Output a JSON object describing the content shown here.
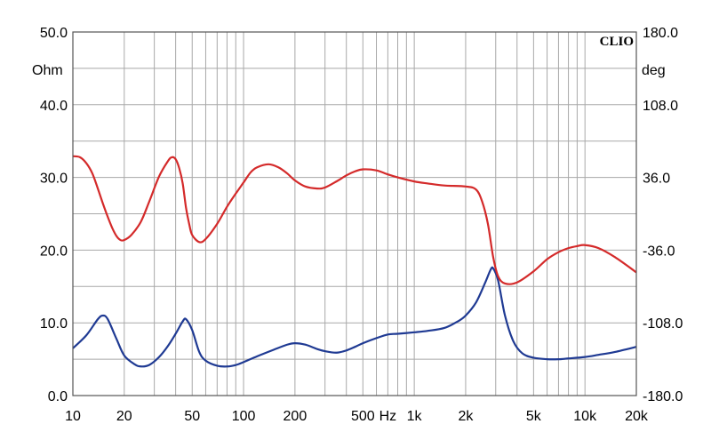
{
  "chart_data": {
    "type": "line",
    "brand": "CLIO",
    "x_scale": "log",
    "xlim": [
      10,
      20000
    ],
    "x_ticks": [
      {
        "value": 10,
        "label": "10"
      },
      {
        "value": 20,
        "label": "20"
      },
      {
        "value": 50,
        "label": "50"
      },
      {
        "value": 100,
        "label": "100"
      },
      {
        "value": 200,
        "label": "200"
      },
      {
        "value": 500,
        "label": "500"
      },
      {
        "value": 700,
        "label": "Hz"
      },
      {
        "value": 1000,
        "label": "1k"
      },
      {
        "value": 2000,
        "label": "2k"
      },
      {
        "value": 5000,
        "label": "5k"
      },
      {
        "value": 10000,
        "label": "10k"
      },
      {
        "value": 20000,
        "label": "20k"
      }
    ],
    "y_left": {
      "unit": "Ohm",
      "lim": [
        0,
        50
      ],
      "ticks": [
        {
          "value": 0,
          "label": "0.0"
        },
        {
          "value": 10,
          "label": "10.0"
        },
        {
          "value": 20,
          "label": "20.0"
        },
        {
          "value": 30,
          "label": "30.0"
        },
        {
          "value": 40,
          "label": "40.0"
        },
        {
          "value": 50,
          "label": "50.0"
        }
      ]
    },
    "y_right": {
      "unit": "deg",
      "lim": [
        -180,
        180
      ],
      "ticks": [
        {
          "value": -180,
          "label": "-180.0"
        },
        {
          "value": -108,
          "label": "-108.0"
        },
        {
          "value": -36,
          "label": "-36.0"
        },
        {
          "value": 36,
          "label": "36.0"
        },
        {
          "value": 108,
          "label": "108.0"
        },
        {
          "value": 180,
          "label": "180.0"
        }
      ]
    },
    "grid": true,
    "series": [
      {
        "axis": "left",
        "color": "#1f3a93",
        "points": [
          [
            10,
            6.5
          ],
          [
            12,
            8.3
          ],
          [
            14,
            10.5
          ],
          [
            15,
            11.0
          ],
          [
            16,
            10.5
          ],
          [
            18,
            7.8
          ],
          [
            20,
            5.5
          ],
          [
            23,
            4.3
          ],
          [
            25,
            4.0
          ],
          [
            28,
            4.2
          ],
          [
            32,
            5.3
          ],
          [
            36,
            6.8
          ],
          [
            40,
            8.5
          ],
          [
            44,
            10.2
          ],
          [
            46,
            10.5
          ],
          [
            50,
            9.0
          ],
          [
            55,
            6.0
          ],
          [
            60,
            4.8
          ],
          [
            70,
            4.1
          ],
          [
            80,
            4.0
          ],
          [
            90,
            4.2
          ],
          [
            100,
            4.6
          ],
          [
            120,
            5.4
          ],
          [
            150,
            6.3
          ],
          [
            180,
            7.0
          ],
          [
            200,
            7.2
          ],
          [
            230,
            7.0
          ],
          [
            270,
            6.4
          ],
          [
            300,
            6.1
          ],
          [
            350,
            5.9
          ],
          [
            400,
            6.2
          ],
          [
            450,
            6.7
          ],
          [
            500,
            7.2
          ],
          [
            600,
            7.9
          ],
          [
            700,
            8.4
          ],
          [
            800,
            8.5
          ],
          [
            1000,
            8.7
          ],
          [
            1200,
            8.9
          ],
          [
            1500,
            9.3
          ],
          [
            1800,
            10.2
          ],
          [
            2000,
            11.0
          ],
          [
            2300,
            12.8
          ],
          [
            2600,
            15.5
          ],
          [
            2800,
            17.3
          ],
          [
            2900,
            17.5
          ],
          [
            3100,
            15.8
          ],
          [
            3400,
            11.0
          ],
          [
            3800,
            7.5
          ],
          [
            4300,
            5.8
          ],
          [
            5000,
            5.2
          ],
          [
            6000,
            5.0
          ],
          [
            7000,
            5.0
          ],
          [
            8000,
            5.1
          ],
          [
            10000,
            5.3
          ],
          [
            12000,
            5.6
          ],
          [
            15000,
            6.0
          ],
          [
            20000,
            6.7
          ]
        ]
      },
      {
        "axis": "right",
        "color": "#d42a2a",
        "points": [
          [
            10,
            57
          ],
          [
            11,
            56
          ],
          [
            12,
            50
          ],
          [
            13,
            40
          ],
          [
            14,
            25
          ],
          [
            15,
            10
          ],
          [
            16,
            -3
          ],
          [
            17,
            -14
          ],
          [
            18,
            -22
          ],
          [
            19,
            -26
          ],
          [
            20,
            -26
          ],
          [
            22,
            -21
          ],
          [
            25,
            -8
          ],
          [
            28,
            12
          ],
          [
            32,
            37
          ],
          [
            36,
            52
          ],
          [
            38,
            56
          ],
          [
            40,
            54
          ],
          [
            42,
            45
          ],
          [
            44,
            30
          ],
          [
            46,
            6
          ],
          [
            48,
            -10
          ],
          [
            50,
            -21
          ],
          [
            55,
            -28
          ],
          [
            60,
            -25
          ],
          [
            70,
            -10
          ],
          [
            80,
            7
          ],
          [
            90,
            20
          ],
          [
            100,
            31
          ],
          [
            110,
            41
          ],
          [
            120,
            46
          ],
          [
            140,
            49
          ],
          [
            160,
            46
          ],
          [
            180,
            40
          ],
          [
            200,
            33
          ],
          [
            230,
            27
          ],
          [
            270,
            25
          ],
          [
            300,
            26
          ],
          [
            350,
            32
          ],
          [
            400,
            38
          ],
          [
            450,
            42
          ],
          [
            500,
            44
          ],
          [
            600,
            43
          ],
          [
            700,
            39
          ],
          [
            800,
            36
          ],
          [
            1000,
            32
          ],
          [
            1200,
            30
          ],
          [
            1500,
            28
          ],
          [
            2000,
            27
          ],
          [
            2300,
            24
          ],
          [
            2500,
            12
          ],
          [
            2700,
            -10
          ],
          [
            2900,
            -43
          ],
          [
            3100,
            -62
          ],
          [
            3400,
            -69
          ],
          [
            4000,
            -68
          ],
          [
            5000,
            -57
          ],
          [
            6000,
            -45
          ],
          [
            7000,
            -38
          ],
          [
            8000,
            -34
          ],
          [
            9000,
            -32
          ],
          [
            10000,
            -31
          ],
          [
            12000,
            -34
          ],
          [
            15000,
            -43
          ],
          [
            20000,
            -58
          ]
        ]
      }
    ]
  }
}
